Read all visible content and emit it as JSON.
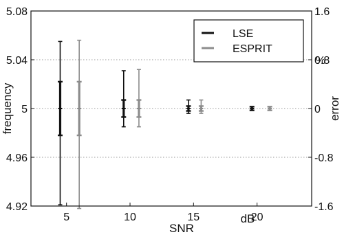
{
  "chart_data": {
    "type": "scatter",
    "title": "",
    "xlabel": "SNR",
    "xunit": "dB",
    "ylabel": "frequency",
    "y2label": "error",
    "y2unit": "%",
    "xlim": [
      2.2,
      24.3
    ],
    "ylim": [
      4.92,
      5.08
    ],
    "y2lim": [
      -1.6,
      1.6
    ],
    "xticks": [
      5,
      10,
      15,
      20
    ],
    "yticks": [
      "4.92",
      "4.96",
      "5",
      "5.04",
      "5.08"
    ],
    "y2ticks": [
      "-1.6",
      "-0.8",
      "0",
      "0.8",
      "1.6"
    ],
    "grid": "horizontal dotted",
    "legend_position": "top-right",
    "series": [
      {
        "name": "LSE",
        "color": "#111111",
        "points": [
          {
            "x": 4.5,
            "y": 5.0,
            "inner_low": 4.978,
            "inner_high": 5.022,
            "outer_low": 4.921,
            "outer_high": 5.055
          },
          {
            "x": 9.5,
            "y": 5.0,
            "inner_low": 4.993,
            "inner_high": 5.007,
            "outer_low": 4.985,
            "outer_high": 5.031
          },
          {
            "x": 14.6,
            "y": 5.0,
            "inner_low": 4.998,
            "inner_high": 5.002,
            "outer_low": 4.996,
            "outer_high": 5.007
          },
          {
            "x": 19.6,
            "y": 5.0,
            "inner_low": 4.9985,
            "inner_high": 5.0015,
            "outer_low": 4.9985,
            "outer_high": 5.0015
          }
        ]
      },
      {
        "name": "ESPRIT",
        "color": "#8c8c8c",
        "points": [
          {
            "x": 6.0,
            "y": 5.0,
            "inner_low": 4.978,
            "inner_high": 5.022,
            "outer_low": 4.918,
            "outer_high": 5.056
          },
          {
            "x": 10.7,
            "y": 5.0,
            "inner_low": 4.993,
            "inner_high": 5.007,
            "outer_low": 4.985,
            "outer_high": 5.032
          },
          {
            "x": 15.6,
            "y": 5.0,
            "inner_low": 4.998,
            "inner_high": 5.002,
            "outer_low": 4.996,
            "outer_high": 5.007
          },
          {
            "x": 21.0,
            "y": 5.0,
            "inner_low": 4.9985,
            "inner_high": 5.0015,
            "outer_low": 4.9985,
            "outer_high": 5.0015
          }
        ]
      }
    ]
  }
}
